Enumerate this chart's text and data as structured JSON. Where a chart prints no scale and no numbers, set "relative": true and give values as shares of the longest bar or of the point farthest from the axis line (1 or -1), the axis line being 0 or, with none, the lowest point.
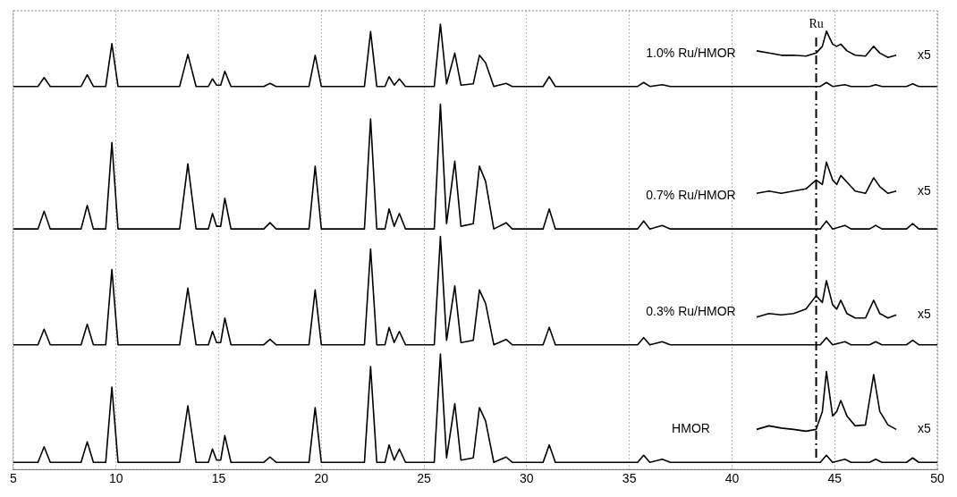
{
  "chart_data": {
    "type": "line",
    "relative": true,
    "xlim": [
      5,
      50
    ],
    "xticks": [
      5,
      10,
      15,
      20,
      25,
      30,
      35,
      40,
      45,
      50
    ],
    "tick_labels": "x",
    "grid": "x",
    "legend": false,
    "marker": "none",
    "line_style": "solid",
    "ref_lines": [
      {
        "axis": "x",
        "value": 44.1,
        "label": "Ru",
        "color": "#000000",
        "line_style": "dashed"
      }
    ],
    "annotations": [
      "x5",
      "x5",
      "x5",
      "x5"
    ],
    "series": [
      {
        "name": "HMOR",
        "color": "#000000",
        "x": [
          5,
          6.2,
          6.5,
          6.8,
          8.3,
          8.6,
          8.9,
          9.5,
          9.8,
          10.1,
          13.1,
          13.5,
          13.9,
          14.5,
          14.7,
          14.9,
          15.1,
          15.3,
          15.6,
          17.2,
          17.5,
          17.8,
          19.4,
          19.7,
          20.0,
          22.1,
          22.4,
          22.7,
          23.1,
          23.3,
          23.55,
          23.8,
          24.1,
          25.5,
          25.8,
          26.1,
          26.5,
          26.8,
          27.4,
          27.7,
          28.0,
          28.4,
          29.0,
          29.3,
          30.8,
          31.1,
          31.4,
          35.4,
          35.7,
          36.0,
          36.6,
          37,
          44.3,
          44.6,
          44.9,
          45.5,
          45.8,
          46.7,
          47.0,
          47.3,
          48.5,
          48.8,
          49.1,
          50
        ],
        "values": [
          0.016,
          0.016,
          0.051,
          0.016,
          0.016,
          0.062,
          0.016,
          0.016,
          0.185,
          0.016,
          0.016,
          0.143,
          0.016,
          0.016,
          0.046,
          0.021,
          0.021,
          0.076,
          0.016,
          0.016,
          0.028,
          0.016,
          0.016,
          0.139,
          0.016,
          0.016,
          0.231,
          0.016,
          0.016,
          0.055,
          0.021,
          0.046,
          0.016,
          0.016,
          0.259,
          0.026,
          0.148,
          0.021,
          0.026,
          0.139,
          0.109,
          0.016,
          0.028,
          0.016,
          0.016,
          0.055,
          0.016,
          0.016,
          0.032,
          0.016,
          0.023,
          0.016,
          0.016,
          0.032,
          0.016,
          0.023,
          0.016,
          0.016,
          0.023,
          0.016,
          0.016,
          0.026,
          0.016,
          0.016
        ]
      },
      {
        "name": "0.3% Ru/HMOR",
        "color": "#000000",
        "x": [
          5,
          6.2,
          6.5,
          6.8,
          8.3,
          8.6,
          8.9,
          9.5,
          9.8,
          10.1,
          13.1,
          13.5,
          13.9,
          14.5,
          14.7,
          14.9,
          15.1,
          15.3,
          15.6,
          17.2,
          17.5,
          17.8,
          19.4,
          19.7,
          20.0,
          22.1,
          22.4,
          22.7,
          23.1,
          23.3,
          23.55,
          23.8,
          24.1,
          25.5,
          25.8,
          26.1,
          26.5,
          26.8,
          27.4,
          27.7,
          28.0,
          28.4,
          29.0,
          29.3,
          30.8,
          31.1,
          31.4,
          35.4,
          35.7,
          36.0,
          36.6,
          37,
          44.3,
          44.6,
          44.9,
          45.5,
          45.8,
          46.7,
          47.0,
          47.3,
          48.5,
          48.8,
          49.1,
          50
        ],
        "values": [
          0.28,
          0.28,
          0.315,
          0.28,
          0.28,
          0.326,
          0.28,
          0.28,
          0.449,
          0.28,
          0.28,
          0.407,
          0.28,
          0.28,
          0.31,
          0.285,
          0.285,
          0.34,
          0.28,
          0.28,
          0.292,
          0.28,
          0.28,
          0.403,
          0.28,
          0.28,
          0.495,
          0.28,
          0.28,
          0.319,
          0.285,
          0.31,
          0.28,
          0.28,
          0.523,
          0.29,
          0.412,
          0.285,
          0.29,
          0.403,
          0.373,
          0.28,
          0.292,
          0.28,
          0.28,
          0.319,
          0.28,
          0.28,
          0.296,
          0.28,
          0.287,
          0.28,
          0.28,
          0.296,
          0.28,
          0.287,
          0.28,
          0.28,
          0.287,
          0.28,
          0.28,
          0.29,
          0.28,
          0.28
        ]
      },
      {
        "name": "0.7% Ru/HMOR",
        "color": "#000000",
        "x": [
          5,
          6.2,
          6.5,
          6.8,
          8.3,
          8.6,
          8.9,
          9.5,
          9.8,
          10.1,
          13.1,
          13.5,
          13.9,
          14.5,
          14.7,
          14.9,
          15.1,
          15.3,
          15.6,
          17.2,
          17.5,
          17.8,
          19.4,
          19.7,
          20.0,
          22.1,
          22.4,
          22.7,
          23.1,
          23.3,
          23.55,
          23.8,
          24.1,
          25.5,
          25.8,
          26.1,
          26.5,
          26.8,
          27.4,
          27.7,
          28.0,
          28.4,
          29.0,
          29.3,
          30.8,
          31.1,
          31.4,
          35.4,
          35.7,
          36.0,
          36.6,
          37,
          44.3,
          44.6,
          44.9,
          45.5,
          45.8,
          46.7,
          47.0,
          47.3,
          48.5,
          48.8,
          49.1,
          50
        ],
        "values": [
          0.54,
          0.54,
          0.58,
          0.54,
          0.54,
          0.593,
          0.54,
          0.54,
          0.734,
          0.54,
          0.54,
          0.686,
          0.54,
          0.54,
          0.575,
          0.546,
          0.546,
          0.609,
          0.54,
          0.54,
          0.554,
          0.54,
          0.54,
          0.681,
          0.54,
          0.54,
          0.787,
          0.54,
          0.54,
          0.585,
          0.546,
          0.575,
          0.54,
          0.54,
          0.82,
          0.552,
          0.692,
          0.546,
          0.552,
          0.681,
          0.647,
          0.54,
          0.554,
          0.54,
          0.54,
          0.585,
          0.54,
          0.54,
          0.558,
          0.54,
          0.548,
          0.54,
          0.54,
          0.558,
          0.54,
          0.548,
          0.54,
          0.54,
          0.548,
          0.54,
          0.54,
          0.552,
          0.54,
          0.54
        ]
      },
      {
        "name": "1.0% Ru/HMOR",
        "color": "#000000",
        "x": [
          5,
          6.2,
          6.5,
          6.8,
          8.3,
          8.6,
          8.9,
          9.5,
          9.8,
          10.1,
          13.1,
          13.5,
          13.9,
          14.5,
          14.7,
          14.9,
          15.1,
          15.3,
          15.6,
          17.2,
          17.5,
          17.8,
          19.4,
          19.7,
          20.0,
          22.1,
          22.4,
          22.7,
          23.1,
          23.3,
          23.55,
          23.8,
          24.1,
          25.5,
          25.8,
          26.1,
          26.5,
          26.8,
          27.4,
          27.7,
          28.0,
          28.4,
          29.0,
          29.3,
          30.8,
          31.1,
          31.4,
          35.4,
          35.7,
          36.0,
          36.6,
          37,
          44.3,
          44.6,
          44.9,
          45.5,
          45.8,
          46.7,
          47.0,
          47.3,
          48.5,
          48.8,
          49.1,
          50
        ],
        "values": [
          0.86,
          0.86,
          0.88,
          0.86,
          0.86,
          0.886,
          0.86,
          0.86,
          0.956,
          0.86,
          0.86,
          0.932,
          0.86,
          0.86,
          0.877,
          0.863,
          0.863,
          0.894,
          0.86,
          0.86,
          0.867,
          0.86,
          0.86,
          0.93,
          0.86,
          0.86,
          0.983,
          0.86,
          0.86,
          0.882,
          0.863,
          0.877,
          0.86,
          0.86,
          1,
          0.866,
          0.935,
          0.863,
          0.866,
          0.93,
          0.913,
          0.86,
          0.867,
          0.86,
          0.86,
          0.882,
          0.86,
          0.86,
          0.869,
          0.86,
          0.864,
          0.86,
          0.86,
          0.869,
          0.86,
          0.864,
          0.86,
          0.86,
          0.864,
          0.86,
          0.86,
          0.866,
          0.86,
          0.86
        ]
      },
      {
        "color": "#000000",
        "x": [
          41.2,
          41.8,
          42.4,
          43.0,
          43.6,
          44.1,
          44.4,
          44.6,
          44.9,
          45.1,
          45.3,
          45.6,
          46.0,
          46.5,
          46.9,
          47.2,
          47.6,
          48.0
        ],
        "values": [
          0.09,
          0.098,
          0.093,
          0.09,
          0.086,
          0.09,
          0.13,
          0.22,
          0.12,
          0.13,
          0.155,
          0.12,
          0.098,
          0.1,
          0.213,
          0.13,
          0.1,
          0.09
        ]
      },
      {
        "color": "#000000",
        "x": [
          41.2,
          41.8,
          42.4,
          43.0,
          43.6,
          44.1,
          44.4,
          44.6,
          44.9,
          45.1,
          45.3,
          45.6,
          46.0,
          46.5,
          46.9,
          47.2,
          47.6,
          48.0
        ],
        "values": [
          0.342,
          0.35,
          0.347,
          0.35,
          0.36,
          0.39,
          0.375,
          0.424,
          0.37,
          0.36,
          0.38,
          0.35,
          0.34,
          0.34,
          0.38,
          0.35,
          0.34,
          0.347
        ]
      },
      {
        "color": "#000000",
        "x": [
          41.2,
          41.8,
          42.4,
          43.0,
          43.6,
          44.1,
          44.4,
          44.6,
          44.9,
          45.1,
          45.3,
          45.6,
          46.0,
          46.5,
          46.9,
          47.2,
          47.6,
          48.0
        ],
        "values": [
          0.62,
          0.625,
          0.62,
          0.625,
          0.63,
          0.65,
          0.64,
          0.69,
          0.65,
          0.64,
          0.66,
          0.645,
          0.625,
          0.62,
          0.655,
          0.635,
          0.62,
          0.625
        ]
      },
      {
        "color": "#000000",
        "x": [
          41.2,
          41.8,
          42.4,
          43.0,
          43.6,
          44.1,
          44.4,
          44.6,
          44.9,
          45.1,
          45.3,
          45.6,
          46.0,
          46.5,
          46.9,
          47.2,
          47.6,
          48.0
        ],
        "values": [
          0.94,
          0.935,
          0.93,
          0.93,
          0.928,
          0.935,
          0.95,
          0.984,
          0.955,
          0.95,
          0.955,
          0.94,
          0.93,
          0.928,
          0.95,
          0.935,
          0.925,
          0.93
        ]
      }
    ]
  }
}
